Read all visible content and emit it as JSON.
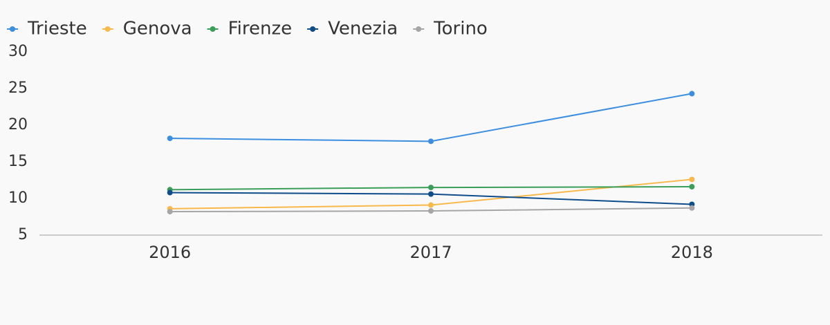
{
  "chart_data": {
    "type": "line",
    "categories": [
      "2016",
      "2017",
      "2018"
    ],
    "series": [
      {
        "name": "Trieste",
        "color": "#3b8ee0",
        "values": [
          18.2,
          17.8,
          24.3
        ]
      },
      {
        "name": "Genova",
        "color": "#f9b94a",
        "values": [
          8.6,
          9.1,
          12.6
        ]
      },
      {
        "name": "Firenze",
        "color": "#3a9e58",
        "values": [
          11.2,
          11.5,
          11.6
        ]
      },
      {
        "name": "Venezia",
        "color": "#0f4c8a",
        "values": [
          10.8,
          10.6,
          9.2
        ]
      },
      {
        "name": "Torino",
        "color": "#a6a6a6",
        "values": [
          8.2,
          8.3,
          8.7
        ]
      }
    ],
    "ylim": [
      5,
      30
    ],
    "yticks": [
      5,
      10,
      15,
      20,
      25,
      30
    ],
    "grid": false,
    "legend": "top"
  }
}
